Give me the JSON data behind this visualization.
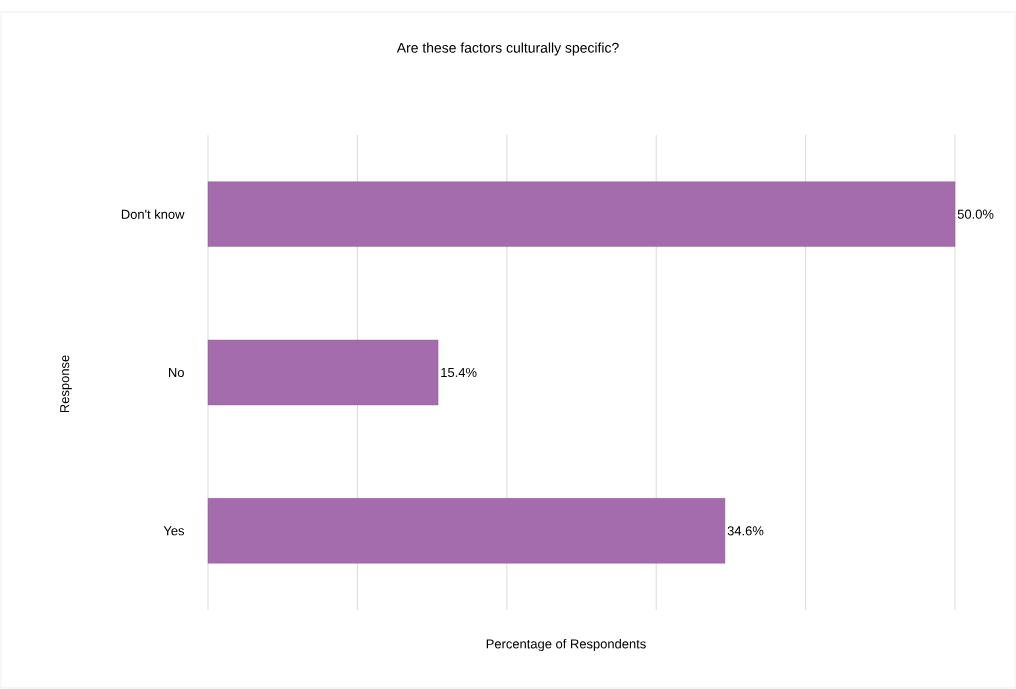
{
  "chart_data": {
    "type": "bar",
    "orientation": "horizontal",
    "title": "Are these factors culturally specific?",
    "xlabel": "Percentage of Respondents",
    "ylabel": "Response",
    "categories": [
      "Don't know",
      "No",
      "Yes"
    ],
    "values": [
      50.0,
      15.4,
      34.6
    ],
    "value_labels": [
      "50.0%",
      "15.4%",
      "34.6%"
    ],
    "color": "#a46cad",
    "xlim": [
      0,
      50
    ],
    "xticks": [
      {
        "value": 0,
        "label": null
      },
      {
        "value": 10,
        "label": null
      },
      {
        "value": 20,
        "label": null
      },
      {
        "value": 30,
        "label": null
      },
      {
        "value": 40,
        "label": null
      },
      {
        "value": 50,
        "label": null
      }
    ],
    "grid": "x",
    "tick_labels": "y"
  }
}
